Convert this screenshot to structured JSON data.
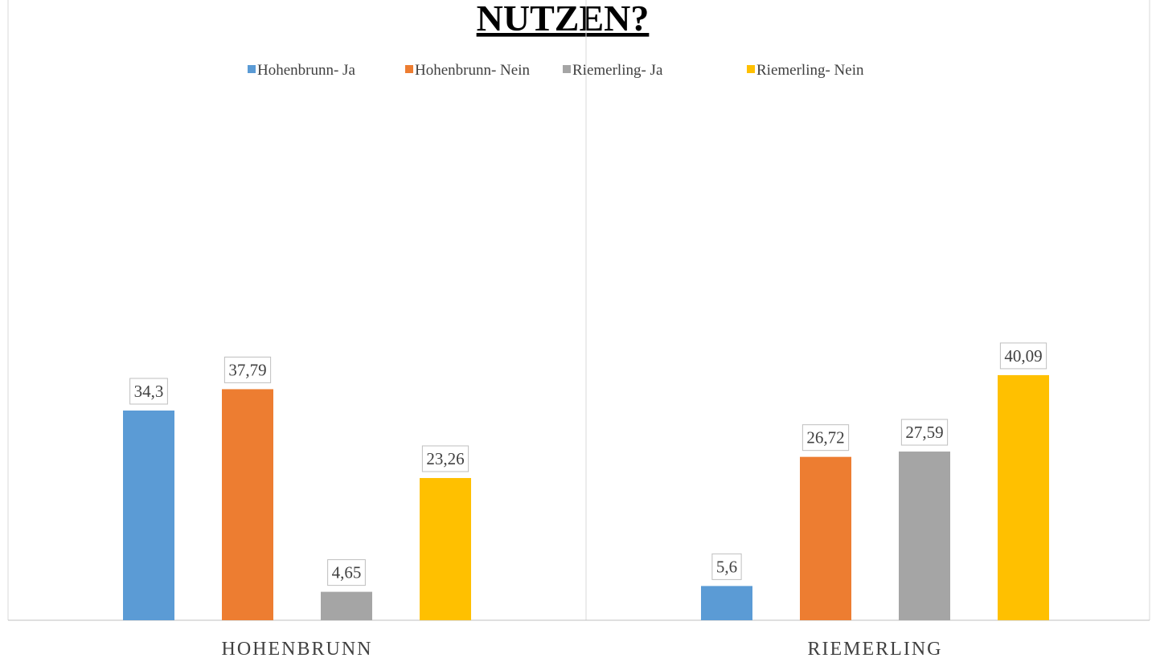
{
  "chart_data": {
    "type": "bar",
    "title": "NUTZEN?",
    "categories": [
      "HOHENBRUNN",
      "RIEMERLING"
    ],
    "series": [
      {
        "name": "Hohenbrunn- Ja",
        "color": "#5b9bd5",
        "values": [
          34.3,
          5.6
        ],
        "value_labels": [
          "34,3",
          "5,6"
        ]
      },
      {
        "name": "Hohenbrunn- Nein",
        "color": "#ed7d31",
        "values": [
          37.79,
          26.72
        ],
        "value_labels": [
          "37,79",
          "26,72"
        ]
      },
      {
        "name": "Riemerling- Ja",
        "color": "#a5a5a5",
        "values": [
          4.65,
          27.59
        ],
        "value_labels": [
          "4,65",
          "27,59"
        ]
      },
      {
        "name": "Riemerling- Nein",
        "color": "#ffc000",
        "values": [
          23.26,
          40.09
        ],
        "value_labels": [
          "23,26",
          "40,09"
        ]
      }
    ],
    "ylim": [
      0,
      100
    ],
    "legend": "top"
  }
}
